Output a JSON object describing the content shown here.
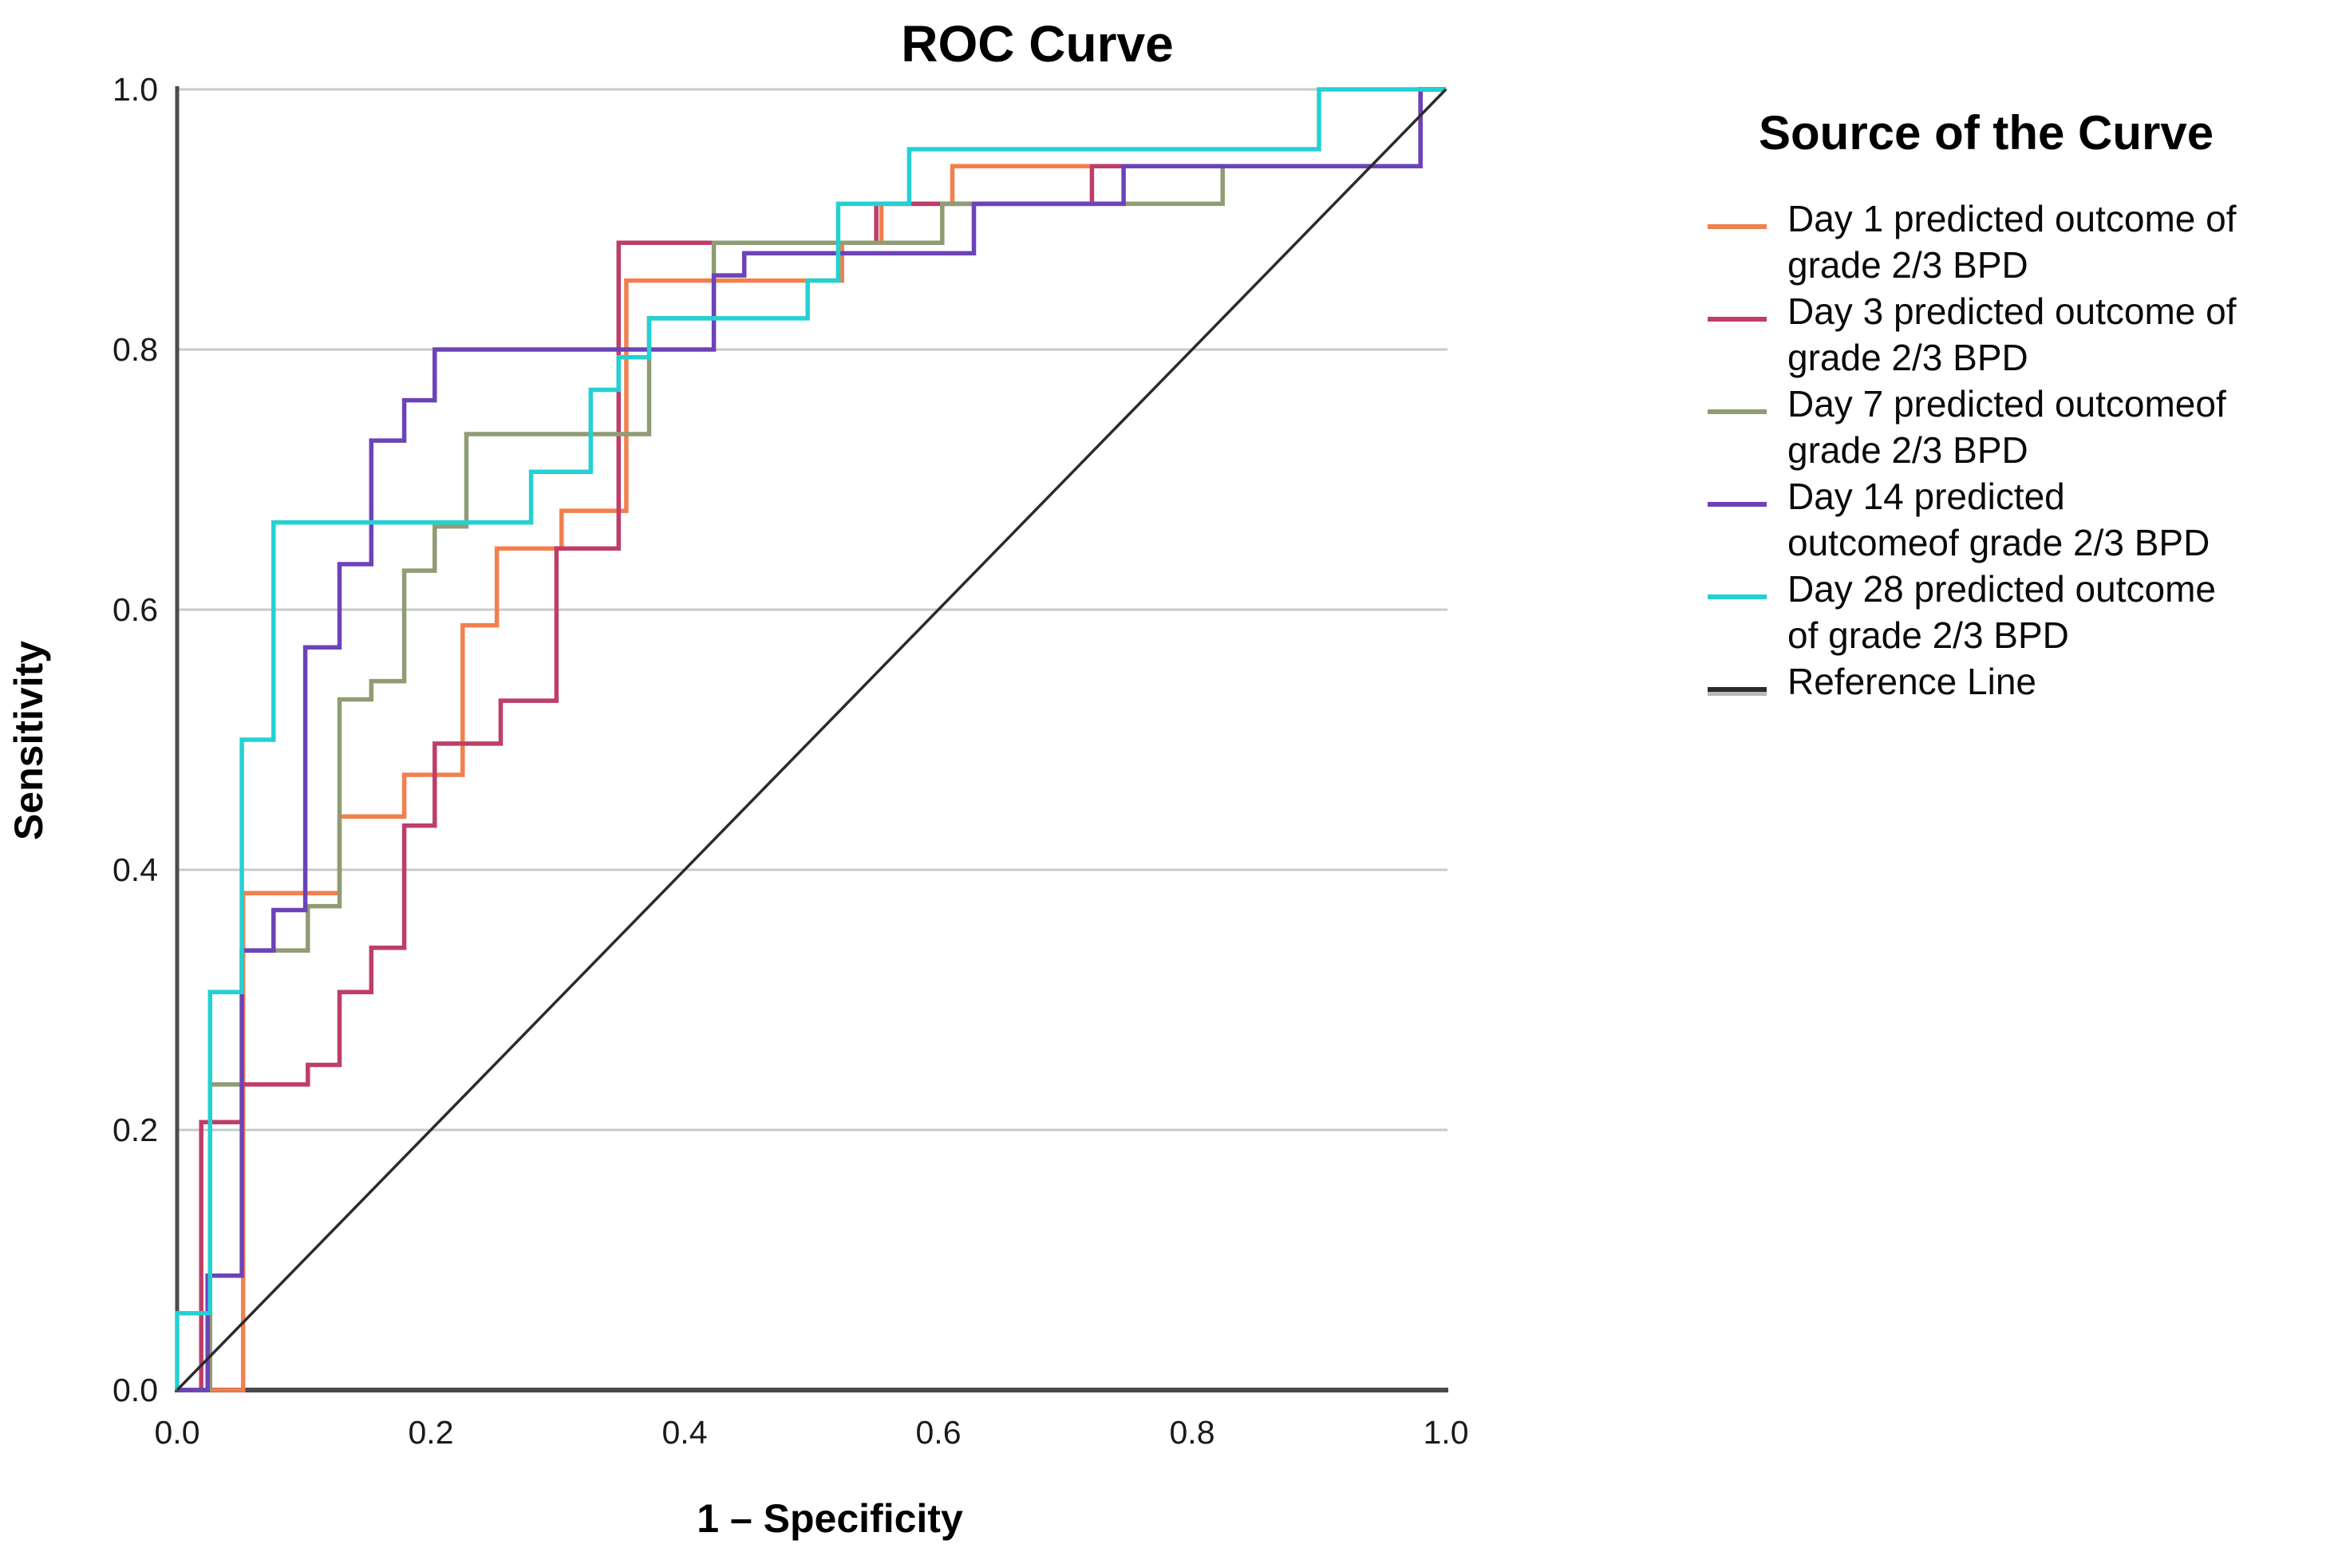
{
  "figure": {
    "title": "ROC Curve"
  },
  "axes": {
    "x_label": "1 – Specificity",
    "y_label": "Sensitivity",
    "x_tick_labels": [
      "0.0",
      "0.2",
      "0.4",
      "0.6",
      "0.8",
      "1.0"
    ],
    "y_tick_labels": [
      "0.0",
      "0.2",
      "0.4",
      "0.6",
      "0.8",
      "1.0"
    ]
  },
  "legend": {
    "title": "Source of the Curve"
  },
  "chart_data": {
    "type": "line",
    "subtype": "roc-step-curves",
    "title": "ROC Curve",
    "xlabel": "1 – Specificity",
    "ylabel": "Sensitivity",
    "xlim": [
      0,
      1
    ],
    "ylim": [
      0,
      1
    ],
    "x_ticks": [
      0.0,
      0.2,
      0.4,
      0.6,
      0.8,
      1.0
    ],
    "y_ticks": [
      0.0,
      0.2,
      0.4,
      0.6,
      0.8,
      1.0
    ],
    "grid": "horizontal gridlines at 0.2, 0.4, 0.6, 0.8, 1.0",
    "legend_position": "right",
    "legend_title": "Source of the Curve",
    "colors": {
      "grid": "#c9c9c9",
      "axis": "#4a4a4a",
      "text": "#111111"
    },
    "series": [
      {
        "key": "day1",
        "legend_lines": [
          "Day 1 predicted outcome of",
          "grade 2/3 BPD"
        ],
        "color": "#F2804C",
        "width": 5.5,
        "points": [
          [
            0,
            0
          ],
          [
            0.052,
            0
          ],
          [
            0.052,
            0.382
          ],
          [
            0.128,
            0.382
          ],
          [
            0.128,
            0.441
          ],
          [
            0.179,
            0.441
          ],
          [
            0.179,
            0.473
          ],
          [
            0.225,
            0.473
          ],
          [
            0.225,
            0.588
          ],
          [
            0.252,
            0.588
          ],
          [
            0.252,
            0.647
          ],
          [
            0.303,
            0.647
          ],
          [
            0.303,
            0.676
          ],
          [
            0.354,
            0.676
          ],
          [
            0.354,
            0.853
          ],
          [
            0.524,
            0.853
          ],
          [
            0.524,
            0.882
          ],
          [
            0.555,
            0.882
          ],
          [
            0.555,
            0.912
          ],
          [
            0.611,
            0.912
          ],
          [
            0.611,
            0.941
          ],
          [
            0.98,
            0.941
          ],
          [
            0.98,
            1
          ],
          [
            1,
            1
          ]
        ]
      },
      {
        "key": "day3",
        "legend_lines": [
          "Day 3 predicted outcome of",
          "grade 2/3 BPD"
        ],
        "color": "#BE3E68",
        "width": 5.5,
        "points": [
          [
            0,
            0
          ],
          [
            0.019,
            0
          ],
          [
            0.019,
            0.206
          ],
          [
            0.051,
            0.206
          ],
          [
            0.051,
            0.235
          ],
          [
            0.103,
            0.235
          ],
          [
            0.103,
            0.25
          ],
          [
            0.128,
            0.25
          ],
          [
            0.128,
            0.306
          ],
          [
            0.153,
            0.306
          ],
          [
            0.153,
            0.34
          ],
          [
            0.179,
            0.34
          ],
          [
            0.179,
            0.434
          ],
          [
            0.203,
            0.434
          ],
          [
            0.203,
            0.497
          ],
          [
            0.255,
            0.497
          ],
          [
            0.255,
            0.53
          ],
          [
            0.299,
            0.53
          ],
          [
            0.299,
            0.647
          ],
          [
            0.348,
            0.647
          ],
          [
            0.348,
            0.882
          ],
          [
            0.551,
            0.882
          ],
          [
            0.551,
            0.912
          ],
          [
            0.721,
            0.912
          ],
          [
            0.721,
            0.941
          ],
          [
            0.98,
            0.941
          ],
          [
            0.98,
            1
          ],
          [
            1,
            1
          ]
        ]
      },
      {
        "key": "day7",
        "legend_lines": [
          "Day 7 predicted outcomeof",
          "grade 2/3 BPD"
        ],
        "color": "#8F9C74",
        "width": 5.5,
        "points": [
          [
            0,
            0
          ],
          [
            0.026,
            0
          ],
          [
            0.026,
            0.235
          ],
          [
            0.051,
            0.235
          ],
          [
            0.051,
            0.338
          ],
          [
            0.103,
            0.338
          ],
          [
            0.103,
            0.372
          ],
          [
            0.128,
            0.372
          ],
          [
            0.128,
            0.531
          ],
          [
            0.153,
            0.531
          ],
          [
            0.153,
            0.545
          ],
          [
            0.179,
            0.545
          ],
          [
            0.179,
            0.63
          ],
          [
            0.203,
            0.63
          ],
          [
            0.203,
            0.664
          ],
          [
            0.228,
            0.664
          ],
          [
            0.228,
            0.735
          ],
          [
            0.372,
            0.735
          ],
          [
            0.372,
            0.824
          ],
          [
            0.423,
            0.824
          ],
          [
            0.423,
            0.882
          ],
          [
            0.603,
            0.882
          ],
          [
            0.603,
            0.912
          ],
          [
            0.824,
            0.912
          ],
          [
            0.824,
            0.941
          ],
          [
            0.98,
            0.941
          ],
          [
            0.98,
            1
          ],
          [
            1,
            1
          ]
        ]
      },
      {
        "key": "day14",
        "legend_lines": [
          "Day 14 predicted",
          "outcomeof grade 2/3 BPD"
        ],
        "color": "#6C43B8",
        "width": 5.5,
        "points": [
          [
            0,
            0
          ],
          [
            0.024,
            0
          ],
          [
            0.024,
            0.088
          ],
          [
            0.051,
            0.088
          ],
          [
            0.051,
            0.338
          ],
          [
            0.076,
            0.338
          ],
          [
            0.076,
            0.369
          ],
          [
            0.101,
            0.369
          ],
          [
            0.101,
            0.571
          ],
          [
            0.128,
            0.571
          ],
          [
            0.128,
            0.635
          ],
          [
            0.153,
            0.635
          ],
          [
            0.153,
            0.73
          ],
          [
            0.179,
            0.73
          ],
          [
            0.179,
            0.761
          ],
          [
            0.203,
            0.761
          ],
          [
            0.203,
            0.8
          ],
          [
            0.423,
            0.8
          ],
          [
            0.423,
            0.857
          ],
          [
            0.447,
            0.857
          ],
          [
            0.447,
            0.874
          ],
          [
            0.628,
            0.874
          ],
          [
            0.628,
            0.912
          ],
          [
            0.746,
            0.912
          ],
          [
            0.746,
            0.941
          ],
          [
            0.98,
            0.941
          ],
          [
            0.98,
            1
          ],
          [
            1,
            1
          ]
        ]
      },
      {
        "key": "day28",
        "legend_lines": [
          "Day 28 predicted outcome",
          "of grade 2/3 BPD"
        ],
        "color": "#23D1D3",
        "width": 5.5,
        "points": [
          [
            0,
            0
          ],
          [
            0,
            0.059
          ],
          [
            0.026,
            0.059
          ],
          [
            0.026,
            0.306
          ],
          [
            0.051,
            0.306
          ],
          [
            0.051,
            0.5
          ],
          [
            0.076,
            0.5
          ],
          [
            0.076,
            0.667
          ],
          [
            0.279,
            0.667
          ],
          [
            0.279,
            0.706
          ],
          [
            0.326,
            0.706
          ],
          [
            0.326,
            0.769
          ],
          [
            0.348,
            0.769
          ],
          [
            0.348,
            0.794
          ],
          [
            0.372,
            0.794
          ],
          [
            0.372,
            0.824
          ],
          [
            0.497,
            0.824
          ],
          [
            0.497,
            0.853
          ],
          [
            0.521,
            0.853
          ],
          [
            0.521,
            0.912
          ],
          [
            0.577,
            0.912
          ],
          [
            0.577,
            0.954
          ],
          [
            0.9,
            0.954
          ],
          [
            0.9,
            1
          ],
          [
            1,
            1
          ]
        ]
      },
      {
        "key": "reference",
        "legend_lines": [
          "Reference Line"
        ],
        "color": "#2B2B2B",
        "width": 3.5,
        "points": [
          [
            0,
            0
          ],
          [
            1,
            1
          ]
        ]
      }
    ]
  }
}
